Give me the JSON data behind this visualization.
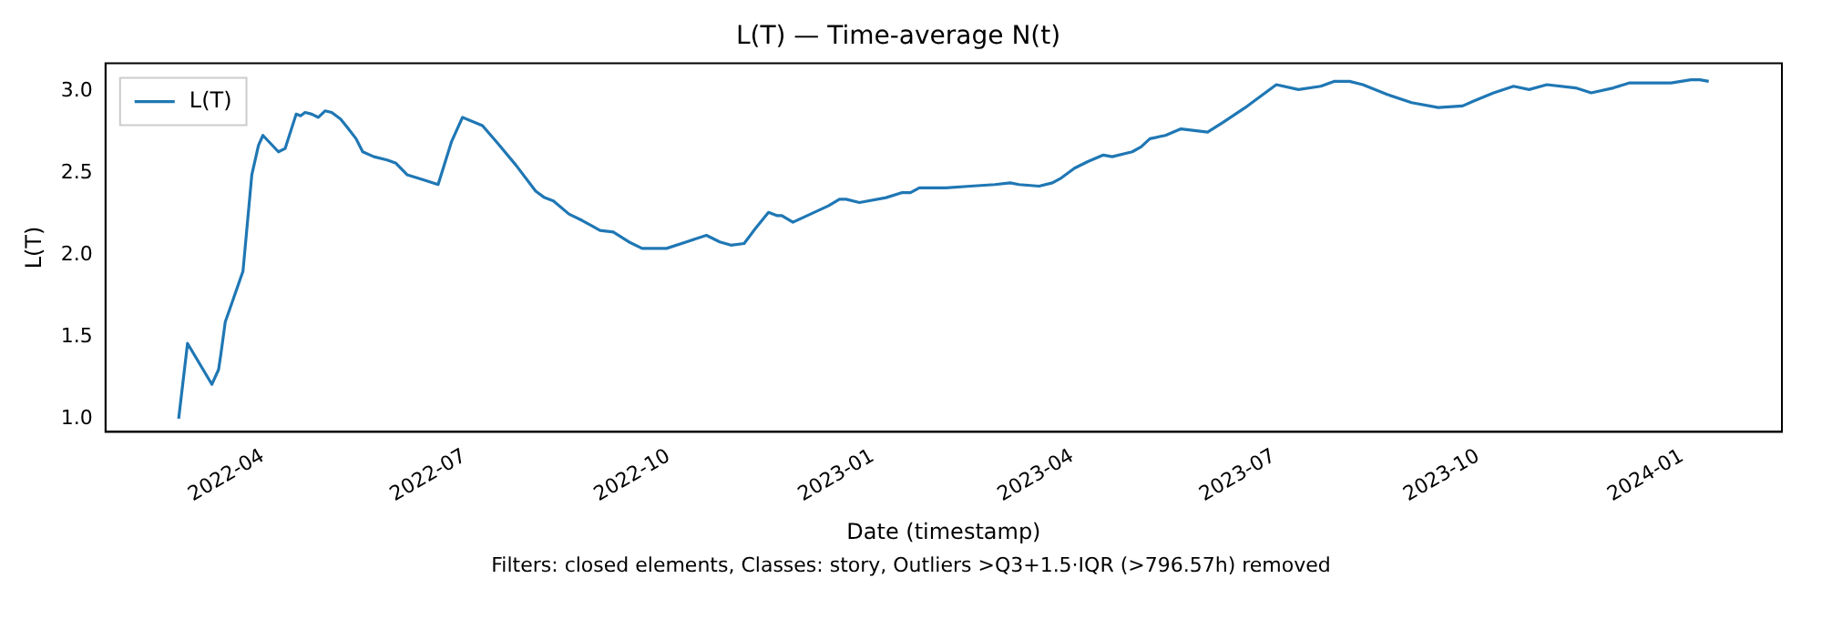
{
  "chart_data": {
    "type": "line",
    "title": "L(T) — Time-average N(t)",
    "xlabel": "Date (timestamp)",
    "ylabel": "L(T)",
    "annotations": [
      "Filters: closed elements, Classes: story, Outliers >Q3+1.5·IQR (>796.57h) removed"
    ],
    "xlim": [
      "2022-01-20",
      "2024-02-15"
    ],
    "xticks": [
      {
        "value": "2022-04-01",
        "label": "2022-04"
      },
      {
        "value": "2022-07-01",
        "label": "2022-07"
      },
      {
        "value": "2022-10-01",
        "label": "2022-10"
      },
      {
        "value": "2023-01-01",
        "label": "2023-01"
      },
      {
        "value": "2023-04-01",
        "label": "2023-04"
      },
      {
        "value": "2023-07-01",
        "label": "2023-07"
      },
      {
        "value": "2023-10-01",
        "label": "2023-10"
      },
      {
        "value": "2024-01-01",
        "label": "2024-01"
      }
    ],
    "ylim": [
      0.92,
      3.17
    ],
    "yticks": [
      {
        "value": 1,
        "label": "1.0"
      },
      {
        "value": 1.5,
        "label": "1.5"
      },
      {
        "value": 2,
        "label": "2.0"
      },
      {
        "value": 2.5,
        "label": "2.5"
      },
      {
        "value": 3,
        "label": "3.0"
      }
    ],
    "legend": "top left",
    "grid": false,
    "series": [
      {
        "name": "L(T)",
        "color": "#1f77b4",
        "x": [
          "2022-02-22",
          "2022-02-26",
          "2022-03-09",
          "2022-03-12",
          "2022-03-13",
          "2022-03-15",
          "2022-03-23",
          "2022-03-27",
          "2022-03-30",
          "2022-04-01",
          "2022-04-08",
          "2022-04-11",
          "2022-04-16",
          "2022-04-18",
          "2022-04-20",
          "2022-04-23",
          "2022-04-26",
          "2022-04-29",
          "2022-05-02",
          "2022-05-06",
          "2022-05-09",
          "2022-05-13",
          "2022-05-16",
          "2022-05-21",
          "2022-05-27",
          "2022-05-31",
          "2022-06-05",
          "2022-06-12",
          "2022-06-19",
          "2022-06-25",
          "2022-06-30",
          "2022-07-09",
          "2022-07-16",
          "2022-07-24",
          "2022-08-02",
          "2022-08-06",
          "2022-08-10",
          "2022-08-17",
          "2022-08-23",
          "2022-08-27",
          "2022-08-31",
          "2022-09-06",
          "2022-09-13",
          "2022-09-19",
          "2022-09-30",
          "2022-10-09",
          "2022-10-18",
          "2022-10-24",
          "2022-10-29",
          "2022-11-04",
          "2022-11-09",
          "2022-11-15",
          "2022-11-19",
          "2022-11-21",
          "2022-11-26",
          "2022-12-04",
          "2022-12-12",
          "2022-12-17",
          "2022-12-20",
          "2022-12-26",
          "2023-01-07",
          "2023-01-14",
          "2023-01-18",
          "2023-01-22",
          "2023-02-03",
          "2023-02-14",
          "2023-02-25",
          "2023-03-04",
          "2023-03-08",
          "2023-03-17",
          "2023-03-23",
          "2023-03-27",
          "2023-04-02",
          "2023-04-08",
          "2023-04-15",
          "2023-04-19",
          "2023-04-28",
          "2023-05-02",
          "2023-05-06",
          "2023-05-13",
          "2023-05-20",
          "2023-05-26",
          "2023-06-01",
          "2023-06-08",
          "2023-06-18",
          "2023-06-21",
          "2023-07-02",
          "2023-07-12",
          "2023-07-22",
          "2023-07-28",
          "2023-08-04",
          "2023-08-10",
          "2023-08-21",
          "2023-09-01",
          "2023-09-13",
          "2023-09-24",
          "2023-09-29",
          "2023-10-08",
          "2023-10-17",
          "2023-10-24",
          "2023-11-01",
          "2023-11-14",
          "2023-11-21",
          "2023-12-01",
          "2023-12-08",
          "2023-12-16",
          "2023-12-27",
          "2024-01-05",
          "2024-01-09",
          "2024-01-13"
        ],
        "values": [
          1.0,
          1.46,
          1.21,
          1.3,
          1.39,
          1.59,
          1.9,
          2.49,
          2.67,
          2.73,
          2.63,
          2.65,
          2.86,
          2.85,
          2.87,
          2.86,
          2.84,
          2.88,
          2.87,
          2.83,
          2.78,
          2.71,
          2.63,
          2.6,
          2.58,
          2.56,
          2.49,
          2.46,
          2.43,
          2.69,
          2.84,
          2.79,
          2.68,
          2.55,
          2.39,
          2.35,
          2.33,
          2.25,
          2.21,
          2.18,
          2.15,
          2.14,
          2.08,
          2.04,
          2.04,
          2.08,
          2.12,
          2.08,
          2.06,
          2.07,
          2.16,
          2.26,
          2.24,
          2.24,
          2.2,
          2.25,
          2.3,
          2.34,
          2.34,
          2.32,
          2.35,
          2.38,
          2.38,
          2.41,
          2.41,
          2.42,
          2.43,
          2.44,
          2.43,
          2.42,
          2.44,
          2.47,
          2.53,
          2.57,
          2.61,
          2.6,
          2.63,
          2.66,
          2.71,
          2.73,
          2.77,
          2.76,
          2.75,
          2.81,
          2.9,
          2.93,
          3.04,
          3.01,
          3.03,
          3.06,
          3.06,
          3.04,
          2.98,
          2.93,
          2.9,
          2.91,
          2.94,
          2.99,
          3.03,
          3.01,
          3.04,
          3.02,
          2.99,
          3.02,
          3.05,
          3.05,
          3.05,
          3.07,
          3.07,
          3.06
        ]
      }
    ]
  }
}
